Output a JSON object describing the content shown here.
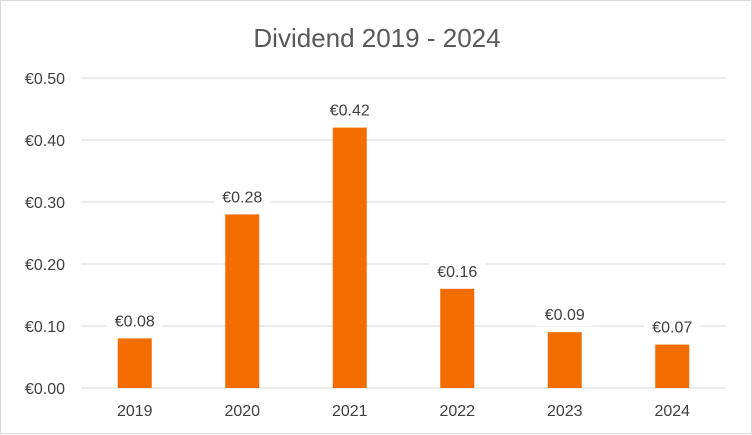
{
  "chart_data": {
    "type": "bar",
    "title": "Dividend 2019 - 2024",
    "categories": [
      "2019",
      "2020",
      "2021",
      "2022",
      "2023",
      "2024"
    ],
    "values": [
      0.08,
      0.28,
      0.42,
      0.16,
      0.09,
      0.07
    ],
    "data_labels": [
      "€0.08",
      "€0.28",
      "€0.42",
      "€0.16",
      "€0.09",
      "€0.07"
    ],
    "y_ticks": [
      0,
      0.1,
      0.2,
      0.3,
      0.4,
      0.5
    ],
    "y_tick_labels": [
      "€0.00",
      "€0.10",
      "€0.20",
      "€0.30",
      "€0.40",
      "€0.50"
    ],
    "ylim": [
      0,
      0.5
    ],
    "xlabel": "",
    "ylabel": "",
    "grid": true,
    "legend": "none",
    "colors": {
      "bar": "#f26c00",
      "grid": "#d9d9d9",
      "text": "#404040",
      "title": "#595959"
    }
  }
}
